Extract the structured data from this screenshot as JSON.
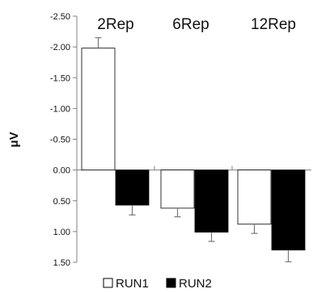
{
  "chart_data": {
    "type": "bar",
    "ylabel": "μV",
    "xlabel": "",
    "title": "",
    "y_inverted": true,
    "ylim": [
      -2.5,
      1.5
    ],
    "y_ticks": [
      "-2.50",
      "-2.00",
      "-1.50",
      "-1.00",
      "-0.50",
      "0.00",
      "0.50",
      "1.00",
      "1.50"
    ],
    "categories": [
      "2Rep",
      "6Rep",
      "12Rep"
    ],
    "series": [
      {
        "name": "RUN1",
        "values": [
          -1.98,
          0.62,
          0.88
        ],
        "errors": [
          0.17,
          0.14,
          0.15
        ],
        "color": "#ffffff"
      },
      {
        "name": "RUN2",
        "values": [
          0.57,
          1.01,
          1.3
        ],
        "errors": [
          0.16,
          0.15,
          0.19
        ],
        "color": "#000000"
      }
    ],
    "grid": false,
    "legend_position": "bottom"
  }
}
